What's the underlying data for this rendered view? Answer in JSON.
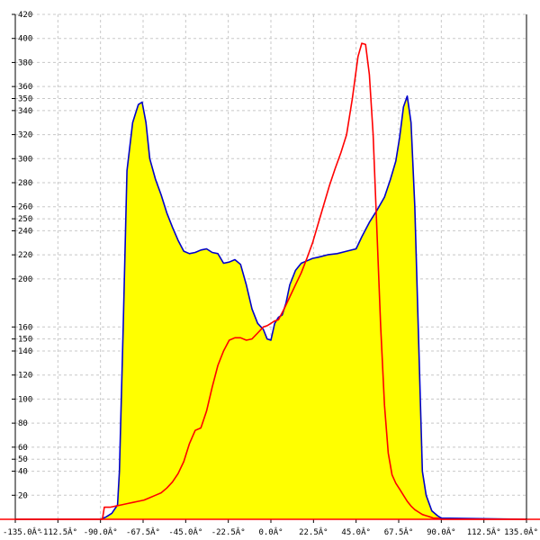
{
  "chart_data": {
    "type": "area",
    "title": "",
    "xlabel": "",
    "ylabel": "",
    "xlim": [
      -135,
      135
    ],
    "ylim": [
      0,
      420
    ],
    "grid": true,
    "x_ticks": [
      {
        "value": -135,
        "label": "-135.0Â°"
      },
      {
        "value": -112.5,
        "label": "-112.5Â°"
      },
      {
        "value": -90,
        "label": "-90.0Â°"
      },
      {
        "value": -67.5,
        "label": "-67.5Â°"
      },
      {
        "value": -45,
        "label": "-45.0Â°"
      },
      {
        "value": -22.5,
        "label": "-22.5Â°"
      },
      {
        "value": 0,
        "label": "0.0Â°"
      },
      {
        "value": 22.5,
        "label": "22.5Â°"
      },
      {
        "value": 45,
        "label": "45.0Â°"
      },
      {
        "value": 67.5,
        "label": "67.5Â°"
      },
      {
        "value": 90,
        "label": "90.0Â°"
      },
      {
        "value": 112.5,
        "label": "112.5Â°"
      },
      {
        "value": 135,
        "label": "135.0Â°"
      }
    ],
    "y_ticks": [
      {
        "value": 20,
        "label": "20"
      },
      {
        "value": 40,
        "label": "40"
      },
      {
        "value": 50,
        "label": "50"
      },
      {
        "value": 60,
        "label": "60"
      },
      {
        "value": 80,
        "label": "80"
      },
      {
        "value": 100,
        "label": "100"
      },
      {
        "value": 120,
        "label": "120"
      },
      {
        "value": 140,
        "label": "140"
      },
      {
        "value": 150,
        "label": "150"
      },
      {
        "value": 160,
        "label": "160"
      },
      {
        "value": 200,
        "label": "200"
      },
      {
        "value": 220,
        "label": "220"
      },
      {
        "value": 240,
        "label": "240"
      },
      {
        "value": 250,
        "label": "250"
      },
      {
        "value": 260,
        "label": "260"
      },
      {
        "value": 280,
        "label": "280"
      },
      {
        "value": 300,
        "label": "300"
      },
      {
        "value": 320,
        "label": "320"
      },
      {
        "value": 340,
        "label": "340"
      },
      {
        "value": 350,
        "label": "350"
      },
      {
        "value": 360,
        "label": "360"
      },
      {
        "value": 380,
        "label": "380"
      },
      {
        "value": 400,
        "label": "400"
      },
      {
        "value": 420,
        "label": "420"
      }
    ],
    "colors": {
      "fill": "#ffff00",
      "blue_line": "#0000cc",
      "red_line": "#ff0000",
      "grid": "#c8c8c8",
      "axis": "#000000"
    },
    "series": [
      {
        "color": "#0000cc",
        "filled": true,
        "x": [
          -135,
          -90,
          -87,
          -84,
          -81,
          -80,
          -78,
          -76,
          -73,
          -70,
          -68,
          -66,
          -64,
          -61,
          -58,
          -55,
          -52,
          -49,
          -46,
          -43,
          -40,
          -37,
          -34,
          -31,
          -28,
          -25,
          -22,
          -19,
          -16,
          -13,
          -10,
          -7,
          -4,
          -2,
          0,
          2,
          4,
          6,
          8,
          10,
          13,
          16,
          19,
          22,
          25,
          30,
          35,
          40,
          45,
          48,
          52,
          56,
          60,
          63,
          66,
          68,
          70,
          72,
          74,
          76,
          78,
          80,
          82,
          85,
          88,
          90,
          135
        ],
        "y": [
          0,
          0,
          2,
          5,
          12,
          40,
          160,
          290,
          330,
          345,
          347,
          330,
          300,
          283,
          270,
          255,
          243,
          232,
          223,
          221,
          222,
          224,
          225,
          222,
          221,
          213,
          214,
          216,
          212,
          195,
          175,
          163,
          158,
          150,
          149,
          163,
          168,
          170,
          180,
          195,
          207,
          213,
          215,
          217,
          218,
          220,
          221,
          223,
          225,
          235,
          247,
          257,
          268,
          282,
          298,
          318,
          343,
          352,
          330,
          260,
          150,
          40,
          20,
          7,
          3,
          1,
          0
        ]
      },
      {
        "color": "#ff0000",
        "filled": false,
        "x": [
          -135,
          -89,
          -88,
          -85,
          -82,
          -79,
          -76,
          -73,
          -70,
          -67,
          -64,
          -61,
          -58,
          -55,
          -52,
          -49,
          -46,
          -43,
          -40,
          -37,
          -34,
          -31,
          -28,
          -25,
          -22,
          -19,
          -16,
          -13,
          -10,
          -7,
          -4,
          -2,
          0,
          2,
          4,
          7,
          10,
          13,
          16,
          19,
          22,
          25,
          28,
          31,
          34,
          37,
          40,
          43,
          46,
          48,
          50,
          52,
          54,
          56,
          58,
          60,
          62,
          64,
          66,
          68,
          70,
          72,
          74,
          76,
          78,
          80,
          82,
          84,
          86,
          88,
          90,
          135
        ],
        "y": [
          0,
          0,
          10,
          10,
          11,
          12,
          13,
          14,
          15,
          16,
          18,
          20,
          22,
          26,
          31,
          38,
          48,
          63,
          74,
          76,
          90,
          110,
          128,
          140,
          149,
          151,
          151,
          149,
          150,
          155,
          160,
          161,
          163,
          165,
          166,
          175,
          185,
          195,
          205,
          217,
          230,
          246,
          262,
          278,
          292,
          305,
          320,
          350,
          385,
          396,
          395,
          370,
          320,
          240,
          160,
          95,
          55,
          37,
          30,
          25,
          20,
          15,
          11,
          8,
          6,
          4,
          3,
          2,
          1,
          1,
          0,
          0
        ]
      }
    ]
  }
}
